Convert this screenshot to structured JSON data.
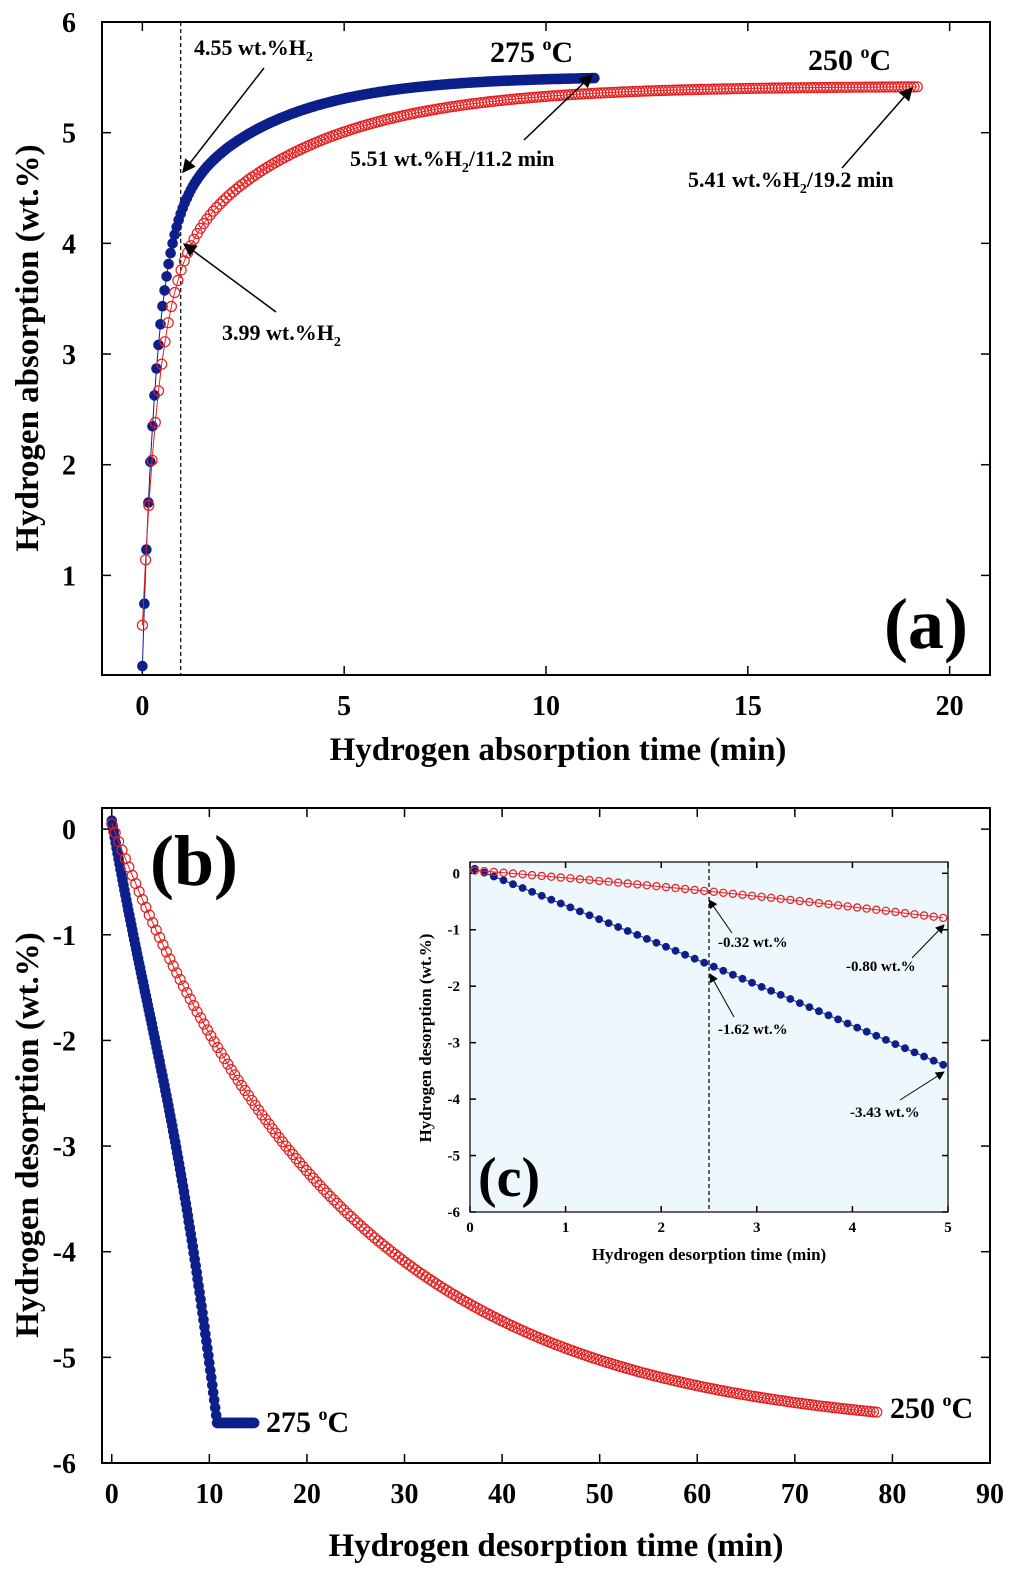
{
  "colors": {
    "series_275": "#0d1f8a",
    "series_250": "#e62020",
    "inset_bg": "#eef7fb"
  },
  "chart_data": [
    {
      "id": "a",
      "panel_label": "(a)",
      "type": "scatter",
      "xlabel": "Hydrogen absorption time (min)",
      "ylabel": "Hydrogen absorption (wt.%)",
      "xlim": [
        -1,
        21
      ],
      "ylim": [
        0.1,
        6
      ],
      "xticks": [
        "0",
        "5",
        "10",
        "15",
        "20"
      ],
      "yticks": [
        "1",
        "2",
        "3",
        "4",
        "5",
        "6"
      ],
      "reference_line_x": 0.95,
      "series": [
        {
          "name": "275 °C",
          "temp_label": {
            "base": "275 ",
            "sup": "o",
            "tail": "C"
          },
          "marker": "filled",
          "t_end": 11.2,
          "initial": 0.18,
          "amplitude": 5.33,
          "coef1": 0.72,
          "rate1": 3.0,
          "coef2": 0.28,
          "rate2": 0.4,
          "step": 0.05
        },
        {
          "name": "250 °C",
          "temp_label": {
            "base": "250 ",
            "sup": "o",
            "tail": "C"
          },
          "marker": "open",
          "t_end": 19.2,
          "initial": 0.55,
          "amplitude": 4.87,
          "coef1": 0.62,
          "rate1": 2.5,
          "coef2": 0.38,
          "rate2": 0.3,
          "step": 0.08
        }
      ],
      "annotations": [
        {
          "text": "4.55 wt.%H",
          "sub": "2",
          "tail": ""
        },
        {
          "text": "3.99 wt.%H",
          "sub": "2",
          "tail": ""
        },
        {
          "text": "5.51 wt.%H",
          "sub": "2",
          "tail": "/11.2 min"
        },
        {
          "text": "5.41 wt.%H",
          "sub": "2",
          "tail": "/19.2 min"
        }
      ]
    },
    {
      "id": "b",
      "panel_label": "(b)",
      "type": "scatter",
      "xlabel": "Hydrogen desorption time (min)",
      "ylabel": "Hydrogen desorption (wt.%)",
      "xlim": [
        -1,
        90
      ],
      "ylim": [
        -6,
        0.2
      ],
      "xticks": [
        "0",
        "10",
        "20",
        "30",
        "40",
        "50",
        "60",
        "70",
        "80",
        "90"
      ],
      "yticks": [
        "0",
        "-1",
        "-2",
        "-3",
        "-4",
        "-5",
        "-6"
      ],
      "series": [
        {
          "name": "275 °C",
          "temp_label": {
            "base": "275 ",
            "sup": "o",
            "tail": "C"
          },
          "marker": "filled",
          "t_end": 14.6,
          "plateau": -5.62,
          "plateau_start": 10.8,
          "step": 0.1
        },
        {
          "name": "250 °C",
          "temp_label": {
            "base": "250 ",
            "sup": "o",
            "tail": "C"
          },
          "marker": "open",
          "t_end": 78.5,
          "final": -5.52,
          "rate": 0.042,
          "step": 0.35
        }
      ]
    },
    {
      "id": "c",
      "panel_label": "(c)",
      "type": "scatter",
      "xlabel": "Hydrogen desorption time (min)",
      "ylabel": "Hydrogen desorption (wt.%)",
      "xlim": [
        0,
        5
      ],
      "ylim": [
        -6,
        0.2
      ],
      "xticks": [
        "0",
        "1",
        "2",
        "3",
        "4",
        "5"
      ],
      "yticks": [
        "0",
        "-1",
        "-2",
        "-3",
        "-4",
        "-5",
        "-6"
      ],
      "reference_line_x": 2.5,
      "series": [
        {
          "name": "275 °C",
          "marker": "filled",
          "points": [
            [
              0.05,
              0.08
            ],
            [
              2.5,
              -1.62
            ],
            [
              5.0,
              -3.43
            ]
          ]
        },
        {
          "name": "250 °C",
          "marker": "open",
          "points": [
            [
              0.05,
              0.05
            ],
            [
              2.5,
              -0.32
            ],
            [
              5.0,
              -0.8
            ]
          ]
        }
      ],
      "annotations": [
        {
          "text": "-0.32 wt.%"
        },
        {
          "text": "-0.80 wt.%"
        },
        {
          "text": "-1.62 wt.%"
        },
        {
          "text": "-3.43 wt.%"
        }
      ]
    }
  ]
}
